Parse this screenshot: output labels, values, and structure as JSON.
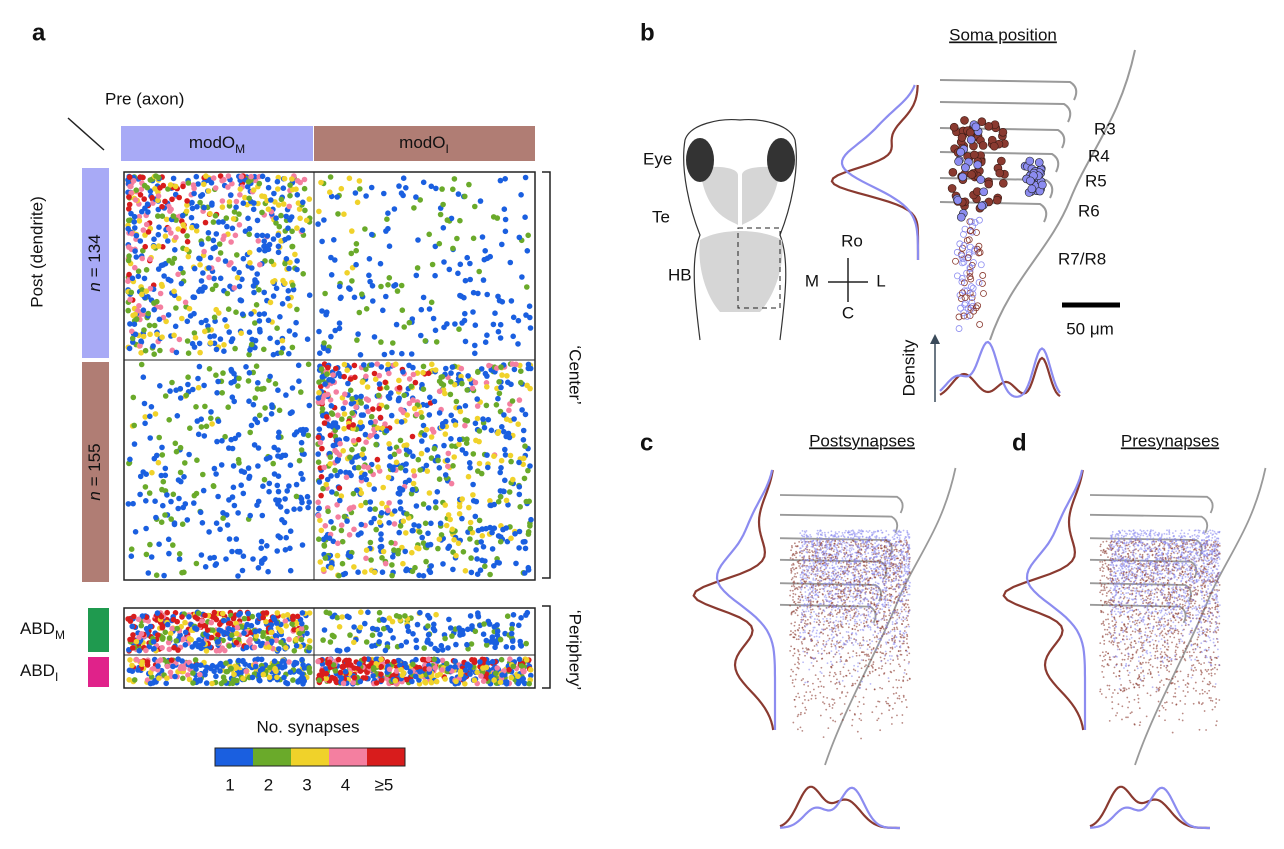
{
  "panels": {
    "a": {
      "label": "a",
      "pre_label": "Pre (axon)",
      "post_label": "Post (dendrite)",
      "pre_groups": [
        {
          "name": "modO",
          "sub": "M",
          "color": "#a8aaf6"
        },
        {
          "name": "modO",
          "sub": "I",
          "color": "#b07d74"
        }
      ],
      "post_groups": [
        {
          "var": "n",
          "count": " = 134",
          "color": "#a8aaf6"
        },
        {
          "var": "n",
          "count": " = 155",
          "color": "#b07d74"
        }
      ],
      "center_label": "‘Center’",
      "periphery_label": "‘Periphery’",
      "periphery_groups": [
        {
          "name": "ABD",
          "sub": "M",
          "color": "#1f9a4f"
        },
        {
          "name": "ABD",
          "sub": "I",
          "color": "#e0228a"
        }
      ],
      "colorbar": {
        "title": "No. synapses",
        "labels": [
          "1",
          "2",
          "3",
          "4",
          "≥5"
        ],
        "colors": [
          "#1a5fe0",
          "#6aaa2a",
          "#f0d22a",
          "#f47fa0",
          "#d81c1c"
        ]
      }
    },
    "b": {
      "label": "b",
      "title": "Soma position",
      "brain_labels": [
        "Eye",
        "Te",
        "HB"
      ],
      "compass": [
        "Ro",
        "M",
        "L",
        "C"
      ],
      "rhombomeres": [
        "R3",
        "R4",
        "R5",
        "R6",
        "R7/R8"
      ],
      "scale_bar": "50 μm",
      "density_label": "Density"
    },
    "c": {
      "label": "c",
      "title": "Postsynapses"
    },
    "d": {
      "label": "d",
      "title": "Presynapses"
    }
  }
}
